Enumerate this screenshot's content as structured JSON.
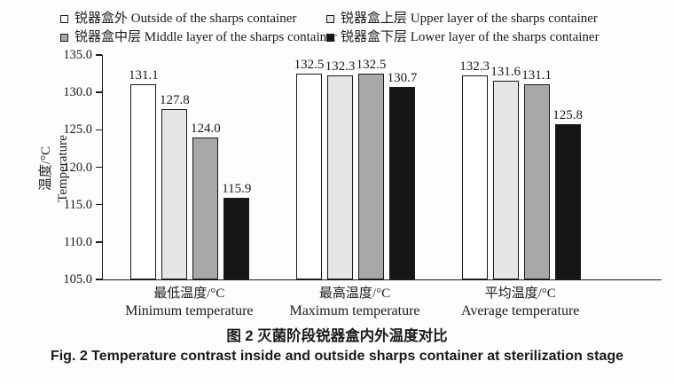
{
  "figure": {
    "caption_zh": "图 2  灭菌阶段锐器盒内外温度对比",
    "caption_en": "Fig. 2  Temperature contrast inside and outside sharps container at sterilization stage"
  },
  "chart_data": {
    "type": "bar",
    "title": "",
    "ylabel_zh": "温度/°C",
    "ylabel_en": "Temperature",
    "ylim": [
      105.0,
      135.0
    ],
    "ytick_step": 5.0,
    "yticks": [
      105.0,
      110.0,
      115.0,
      120.0,
      125.0,
      130.0,
      135.0
    ],
    "grid": false,
    "legend_position": "top",
    "value_label_decimals": 1,
    "bar_border_color": "#1a1a1a",
    "categories": [
      {
        "zh": "最低温度/°C",
        "en": "Minimum temperature"
      },
      {
        "zh": "最高温度/°C",
        "en": "Maximum temperature"
      },
      {
        "zh": "平均温度/°C",
        "en": "Average temperature"
      }
    ],
    "series": [
      {
        "name": "锐器盒外 Outside of the sharps container",
        "color": "#ffffff",
        "values": [
          131.1,
          132.5,
          132.3
        ]
      },
      {
        "name": "锐器盒上层 Upper layer of the sharps container",
        "color": "#e6e6e6",
        "values": [
          127.8,
          132.3,
          131.6
        ]
      },
      {
        "name": "锐器盒中层 Middle layer of the sharps container",
        "color": "#a8a8a8",
        "values": [
          124.0,
          132.5,
          131.1
        ]
      },
      {
        "name": "锐器盒下层 Lower layer of the sharps container",
        "color": "#161616",
        "values": [
          115.9,
          130.7,
          125.8
        ]
      }
    ]
  }
}
